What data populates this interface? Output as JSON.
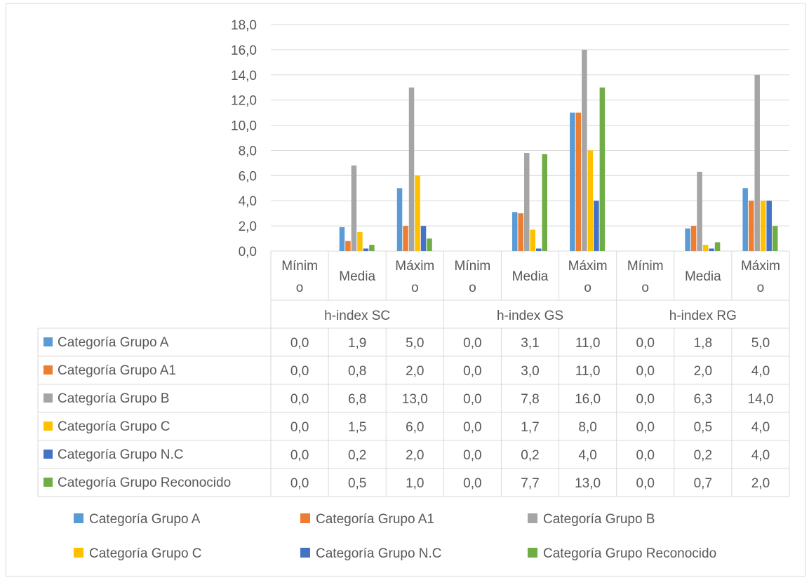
{
  "chart_data": {
    "type": "bar",
    "ylim": [
      0,
      18
    ],
    "y_ticks": [
      "0,0",
      "2,0",
      "4,0",
      "6,0",
      "8,0",
      "10,0",
      "12,0",
      "14,0",
      "16,0",
      "18,0"
    ],
    "grid": true,
    "legend_position": "bottom",
    "groups": [
      {
        "name": "h-index SC",
        "subcategories": [
          {
            "line1": "Mínim",
            "line2": "o"
          },
          {
            "line1": "Media",
            "line2": ""
          },
          {
            "line1": "Máxim",
            "line2": "o"
          }
        ]
      },
      {
        "name": "h-index GS",
        "subcategories": [
          {
            "line1": "Mínim",
            "line2": "o"
          },
          {
            "line1": "Media",
            "line2": ""
          },
          {
            "line1": "Máxim",
            "line2": "o"
          }
        ]
      },
      {
        "name": "h-index RG",
        "subcategories": [
          {
            "line1": "Mínim",
            "line2": "o"
          },
          {
            "line1": "Media",
            "line2": ""
          },
          {
            "line1": "Máxim",
            "line2": "o"
          }
        ]
      }
    ],
    "series": [
      {
        "name": "Categoría Grupo A",
        "color": "#5b9bd5",
        "values": [
          0.0,
          1.9,
          5.0,
          0.0,
          3.1,
          11.0,
          0.0,
          1.8,
          5.0
        ],
        "labels": [
          "0,0",
          "1,9",
          "5,0",
          "0,0",
          "3,1",
          "11,0",
          "0,0",
          "1,8",
          "5,0"
        ]
      },
      {
        "name": "Categoría Grupo A1",
        "color": "#ed7d31",
        "values": [
          0.0,
          0.8,
          2.0,
          0.0,
          3.0,
          11.0,
          0.0,
          2.0,
          4.0
        ],
        "labels": [
          "0,0",
          "0,8",
          "2,0",
          "0,0",
          "3,0",
          "11,0",
          "0,0",
          "2,0",
          "4,0"
        ]
      },
      {
        "name": "Categoría Grupo B",
        "color": "#a5a5a5",
        "values": [
          0.0,
          6.8,
          13.0,
          0.0,
          7.8,
          16.0,
          0.0,
          6.3,
          14.0
        ],
        "labels": [
          "0,0",
          "6,8",
          "13,0",
          "0,0",
          "7,8",
          "16,0",
          "0,0",
          "6,3",
          "14,0"
        ]
      },
      {
        "name": "Categoría Grupo C",
        "color": "#ffc000",
        "values": [
          0.0,
          1.5,
          6.0,
          0.0,
          1.7,
          8.0,
          0.0,
          0.5,
          4.0
        ],
        "labels": [
          "0,0",
          "1,5",
          "6,0",
          "0,0",
          "1,7",
          "8,0",
          "0,0",
          "0,5",
          "4,0"
        ]
      },
      {
        "name": "Categoría Grupo N.C",
        "color": "#4472c4",
        "values": [
          0.0,
          0.2,
          2.0,
          0.0,
          0.2,
          4.0,
          0.0,
          0.2,
          4.0
        ],
        "labels": [
          "0,0",
          "0,2",
          "2,0",
          "0,0",
          "0,2",
          "4,0",
          "0,0",
          "0,2",
          "4,0"
        ]
      },
      {
        "name": "Categoría Grupo Reconocido",
        "color": "#70ad47",
        "values": [
          0.0,
          0.5,
          1.0,
          0.0,
          7.7,
          13.0,
          0.0,
          0.7,
          2.0
        ],
        "labels": [
          "0,0",
          "0,5",
          "1,0",
          "0,0",
          "7,7",
          "13,0",
          "0,0",
          "0,7",
          "2,0"
        ]
      }
    ]
  }
}
